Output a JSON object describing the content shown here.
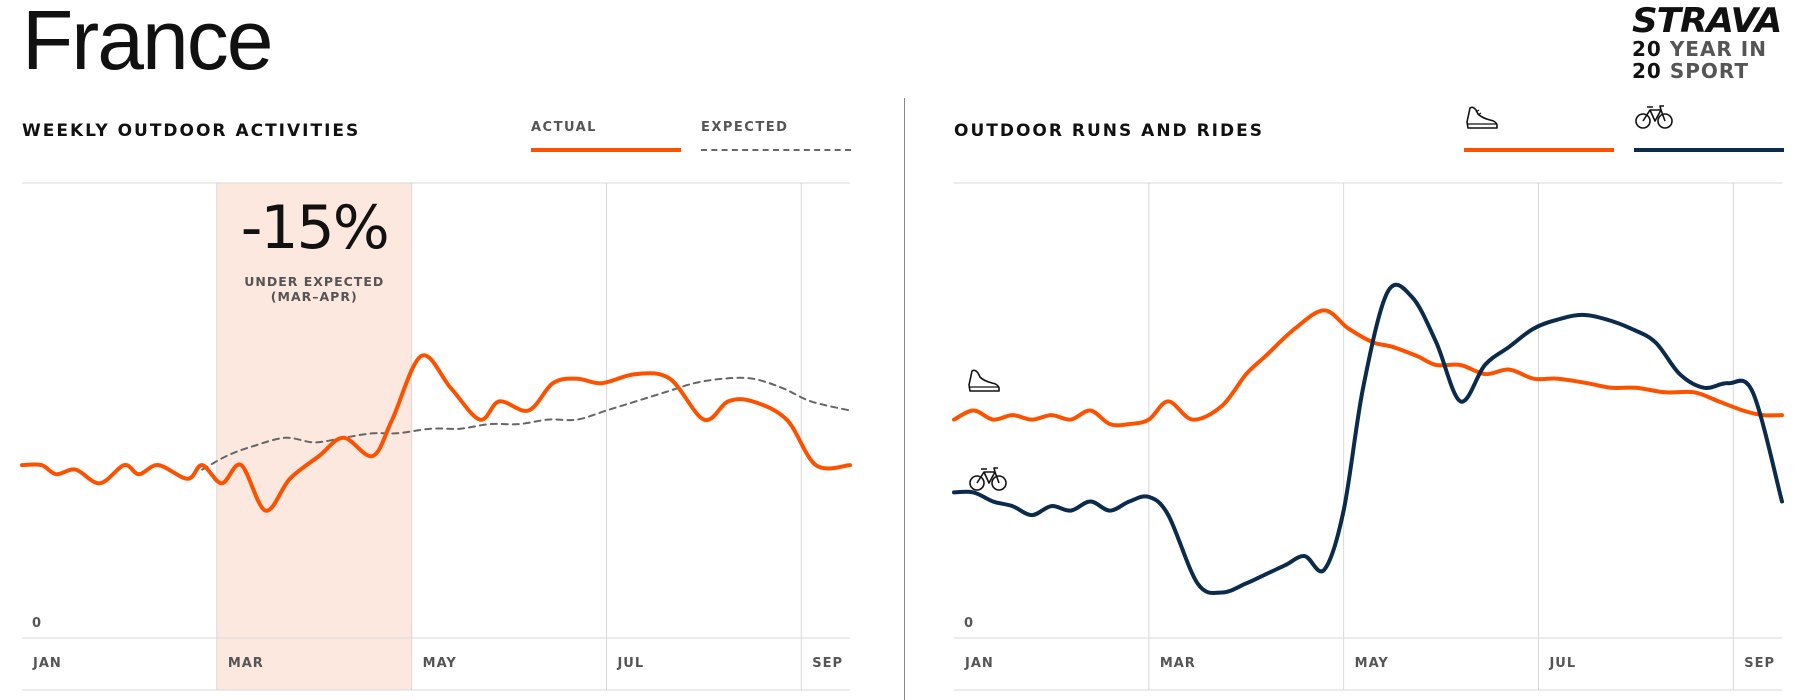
{
  "page": {
    "title": "France",
    "logo": {
      "brand": "STRAVA",
      "line1_num": "20",
      "line1_word": "YEAR IN",
      "line2_num": "20",
      "line2_word": "SPORT"
    }
  },
  "colors": {
    "actual": "#fc5200",
    "expected": "#666666",
    "ride": "#0c2b4b",
    "highlight": "#fde8df",
    "grid": "#d8d8d8"
  },
  "chart_data": [
    {
      "type": "line",
      "title": "WEEKLY OUTDOOR ACTIVITIES",
      "x_ticks": [
        "JAN",
        "MAR",
        "MAY",
        "JUL",
        "SEP"
      ],
      "x_tick_values": [
        1,
        3,
        5,
        7,
        9
      ],
      "xlim": [
        1,
        9.5
      ],
      "ylim": [
        0,
        100
      ],
      "y_tick_label": "0",
      "grid": true,
      "legend_position": "top-right",
      "series": [
        {
          "name": "ACTUAL",
          "color_key": "actual",
          "style": "solid",
          "x": [
            1,
            1.2,
            1.35,
            1.55,
            1.8,
            2.05,
            2.2,
            2.4,
            2.7,
            2.85,
            3.05,
            3.25,
            3.5,
            3.75,
            4.05,
            4.3,
            4.6,
            4.8,
            5.1,
            5.4,
            5.7,
            5.9,
            6.2,
            6.45,
            6.7,
            6.95,
            7.3,
            7.65,
            8.0,
            8.25,
            8.5,
            8.85,
            9.15,
            9.5
          ],
          "y": [
            38,
            38,
            36,
            37,
            34,
            38,
            36,
            38,
            35,
            38,
            34,
            38,
            28,
            35,
            40,
            44,
            40,
            48,
            62,
            55,
            48,
            52,
            50,
            56,
            57,
            56,
            58,
            57,
            48,
            52,
            52,
            48,
            38,
            38
          ]
        },
        {
          "name": "EXPECTED",
          "color_key": "expected",
          "style": "dashed",
          "x": [
            2.85,
            3.1,
            3.35,
            3.7,
            4.0,
            4.3,
            4.6,
            4.85,
            5.2,
            5.5,
            5.8,
            6.1,
            6.4,
            6.7,
            7.0,
            7.3,
            7.6,
            7.9,
            8.2,
            8.5,
            8.8,
            9.1,
            9.5
          ],
          "y": [
            37,
            40,
            42,
            44,
            43,
            44,
            45,
            45,
            46,
            46,
            47,
            47,
            48,
            48,
            50,
            52,
            54,
            56,
            57,
            57,
            55,
            52,
            50
          ]
        }
      ],
      "highlight": {
        "x_start": 3,
        "x_end": 5,
        "value": "-15%",
        "label_line1": "UNDER EXPECTED",
        "label_line2": "(MAR–APR)"
      }
    },
    {
      "type": "line",
      "title": "OUTDOOR RUNS AND RIDES",
      "x_ticks": [
        "JAN",
        "MAR",
        "MAY",
        "JUL",
        "SEP"
      ],
      "x_tick_values": [
        1,
        3,
        5,
        7,
        9
      ],
      "xlim": [
        1,
        9.5
      ],
      "ylim": [
        0,
        100
      ],
      "y_tick_label": "0",
      "grid": true,
      "legend_position": "top-right",
      "series": [
        {
          "legend_icon": "running-shoe-icon",
          "color_key": "actual",
          "x": [
            1,
            1.2,
            1.4,
            1.6,
            1.8,
            2.0,
            2.2,
            2.4,
            2.6,
            2.8,
            3.0,
            3.2,
            3.45,
            3.75,
            4.0,
            4.2,
            4.5,
            4.8,
            5.05,
            5.3,
            5.5,
            5.75,
            5.95,
            6.2,
            6.45,
            6.7,
            6.95,
            7.2,
            7.5,
            7.75,
            8.0,
            8.3,
            8.6,
            8.85,
            9.1,
            9.3,
            9.5
          ],
          "y": [
            48,
            50,
            48,
            49,
            48,
            49,
            48,
            50,
            47,
            47,
            48,
            52,
            48,
            51,
            58,
            62,
            68,
            72,
            68,
            65,
            64,
            62,
            60,
            60,
            58,
            59,
            57,
            57,
            56,
            55,
            55,
            54,
            54,
            52,
            50,
            49,
            49
          ]
        },
        {
          "legend_icon": "bicycle-icon",
          "color_key": "ride",
          "x": [
            1,
            1.2,
            1.4,
            1.6,
            1.8,
            2.0,
            2.2,
            2.4,
            2.6,
            2.8,
            3.0,
            3.2,
            3.5,
            3.75,
            4.0,
            4.2,
            4.4,
            4.6,
            4.8,
            5.0,
            5.2,
            5.45,
            5.7,
            5.95,
            6.2,
            6.45,
            6.7,
            6.95,
            7.2,
            7.45,
            7.7,
            7.95,
            8.2,
            8.45,
            8.7,
            8.95,
            9.2,
            9.5
          ],
          "y": [
            32,
            32,
            30,
            29,
            27,
            29,
            28,
            30,
            28,
            30,
            31,
            27,
            12,
            10,
            12,
            14,
            16,
            18,
            15,
            28,
            55,
            76,
            75,
            65,
            52,
            60,
            64,
            68,
            70,
            71,
            70,
            68,
            65,
            58,
            55,
            56,
            54,
            30
          ]
        }
      ]
    }
  ]
}
